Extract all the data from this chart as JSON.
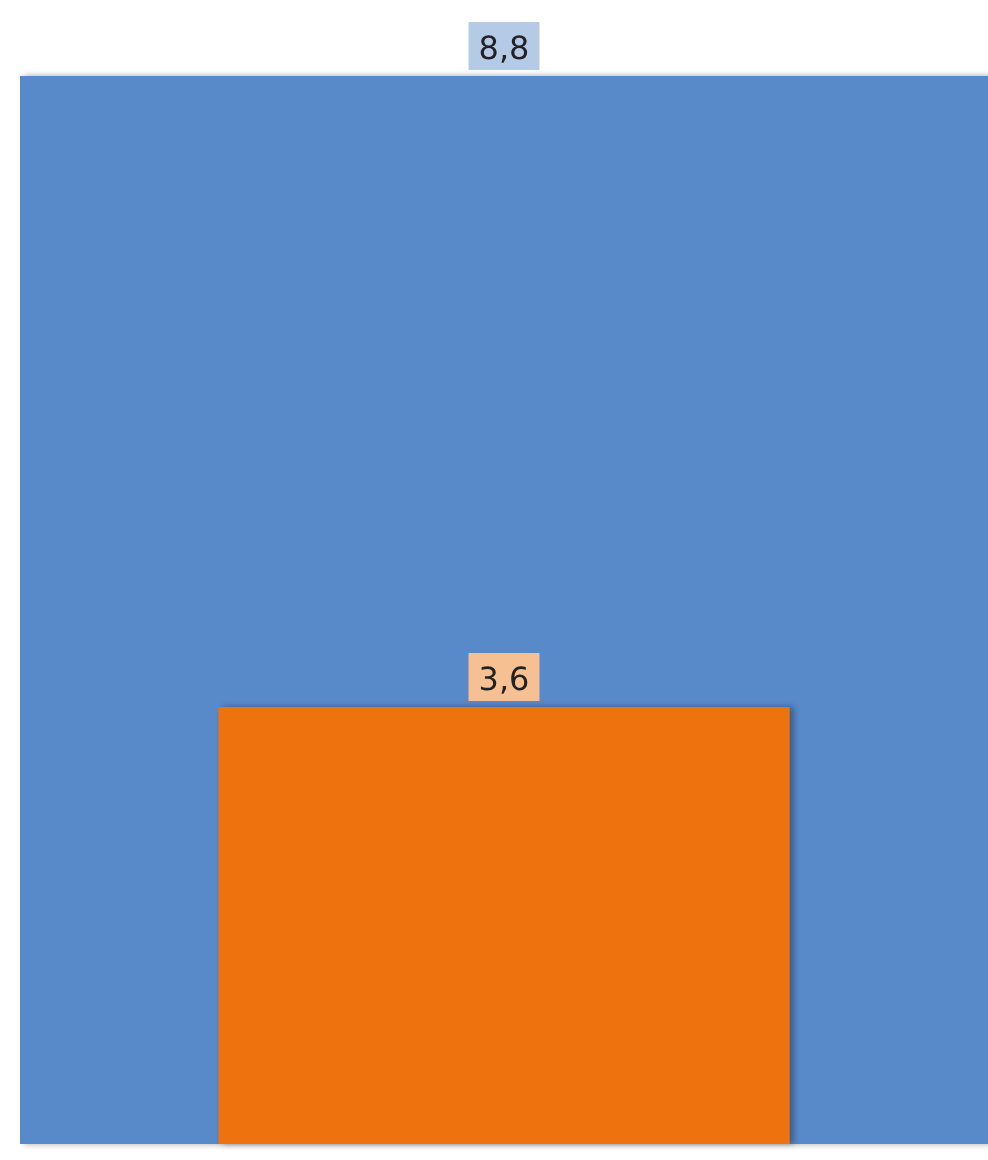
{
  "chart_data": {
    "type": "bar",
    "categories": [
      null
    ],
    "series": [
      {
        "color": "#5889c9",
        "values": [
          8.8
        ],
        "value_labels": [
          "8,8"
        ]
      },
      {
        "color": "#ee720e",
        "values": [
          3.6
        ],
        "value_labels": [
          "3,6"
        ]
      }
    ]
  }
}
